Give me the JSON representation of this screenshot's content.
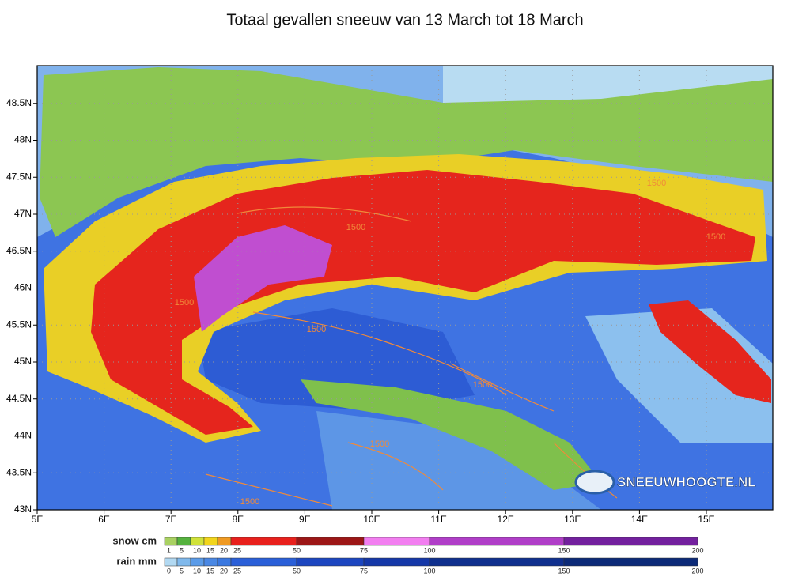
{
  "title": "Totaal gevallen sneeuw van 13 March tot 18 March",
  "map": {
    "lat_labels": [
      "43N",
      "43.5N",
      "44N",
      "44.5N",
      "45N",
      "45.5N",
      "46N",
      "46.5N",
      "47N",
      "47.5N",
      "48N",
      "48.5N"
    ],
    "lon_labels": [
      "5E",
      "6E",
      "7E",
      "8E",
      "9E",
      "10E",
      "11E",
      "12E",
      "13E",
      "14E",
      "15E"
    ],
    "contour_labels": [
      "1500",
      "1500",
      "1500",
      "1500",
      "1500",
      "1500",
      "1500",
      "1500"
    ],
    "logo": "SNEEUWHOOGTE.NL"
  },
  "legend": {
    "snow": {
      "label": "snow cm",
      "stops": [
        1,
        5,
        10,
        15,
        20,
        25,
        50,
        75,
        100,
        150,
        200
      ],
      "colors": [
        "#a9d162",
        "#55b23e",
        "#d0e23a",
        "#f2d51c",
        "#f09a22",
        "#e8201c",
        "#9c1616",
        "#f27ef0",
        "#b03ec8",
        "#73209e"
      ]
    },
    "rain": {
      "label": "rain mm",
      "stops": [
        0,
        5,
        10,
        15,
        20,
        25,
        50,
        75,
        100,
        150,
        200
      ],
      "colors": [
        "#b2d9f2",
        "#80b9ec",
        "#5a9be8",
        "#4a88e4",
        "#3a78e0",
        "#2a5fd8",
        "#1c46c0",
        "#1538a8",
        "#10308e",
        "#0c2a78"
      ]
    }
  }
}
